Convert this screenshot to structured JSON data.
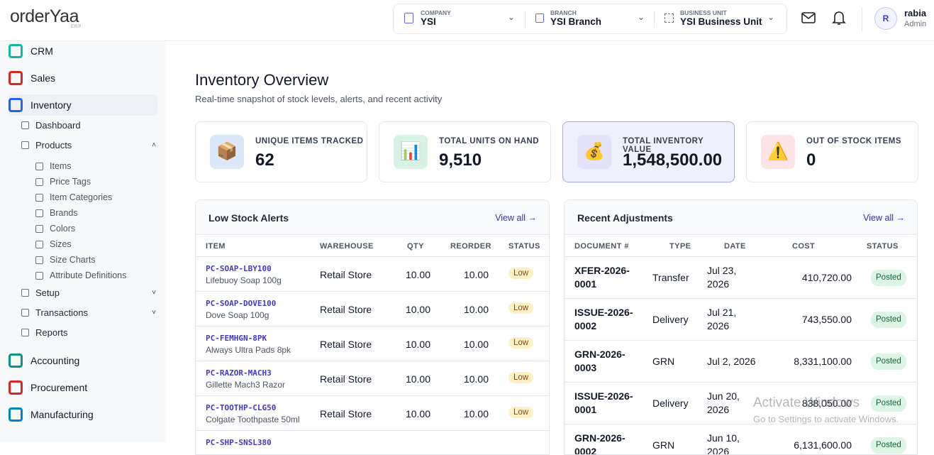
{
  "header": {
    "logo": "orderYaa",
    "logo_sub": "ERP",
    "company_label": "COMPANY",
    "company": "YSI",
    "branch_label": "BRANCH",
    "branch": "YSI Branch",
    "bu_label": "BUSINESS UNIT",
    "bu": "YSI Business Unit",
    "avatar": "R",
    "user": "rabia",
    "role": "Admin"
  },
  "sidebar": {
    "items": [
      {
        "label": "CRM",
        "level": 0
      },
      {
        "label": "Sales",
        "level": 0
      },
      {
        "label": "Inventory",
        "level": 0,
        "active": true
      },
      {
        "label": "Dashboard",
        "level": 1
      },
      {
        "label": "Products",
        "level": 1,
        "open": true
      },
      {
        "label": "Items",
        "level": 2
      },
      {
        "label": "Price Tags",
        "level": 2
      },
      {
        "label": "Item Categories",
        "level": 2
      },
      {
        "label": "Brands",
        "level": 2
      },
      {
        "label": "Colors",
        "level": 2
      },
      {
        "label": "Sizes",
        "level": 2
      },
      {
        "label": "Size Charts",
        "level": 2
      },
      {
        "label": "Attribute Definitions",
        "level": 2
      },
      {
        "label": "Setup",
        "level": 1,
        "caret": true
      },
      {
        "label": "Transactions",
        "level": 1,
        "caret": true
      },
      {
        "label": "Reports",
        "level": 1
      },
      {
        "label": "Accounting",
        "level": 0
      },
      {
        "label": "Procurement",
        "level": 0
      },
      {
        "label": "Manufacturing",
        "level": 0
      }
    ]
  },
  "page": {
    "title": "Inventory Overview",
    "subtitle": "Real-time snapshot of stock levels, alerts, and recent activity"
  },
  "cards": [
    {
      "label": "UNIQUE ITEMS TRACKED",
      "value": "62"
    },
    {
      "label": "TOTAL UNITS ON HAND",
      "value": "9,510"
    },
    {
      "label": "TOTAL INVENTORY VALUE",
      "value": "1,548,500.00"
    },
    {
      "label": "OUT OF STOCK ITEMS",
      "value": "0"
    }
  ],
  "low_stock": {
    "title": "Low Stock Alerts",
    "link": "View all →",
    "columns": [
      "ITEM",
      "WAREHOUSE",
      "QTY",
      "REORDER",
      "STATUS"
    ],
    "rows": [
      [
        "PC-SOAP-LBY100",
        "Lifebuoy Soap 100g",
        "Retail Store",
        "10.00",
        "10.00",
        "Low"
      ],
      [
        "PC-SOAP-DOVE100",
        "Dove Soap 100g",
        "Retail Store",
        "10.00",
        "10.00",
        "Low"
      ],
      [
        "PC-FEMHGN-8PK",
        "Always Ultra Pads 8pk",
        "Retail Store",
        "10.00",
        "10.00",
        "Low"
      ],
      [
        "PC-RAZOR-MACH3",
        "Gillette Mach3 Razor",
        "Retail Store",
        "10.00",
        "10.00",
        "Low"
      ],
      [
        "PC-TOOTHP-CLG50",
        "Colgate Toothpaste 50ml",
        "Retail Store",
        "10.00",
        "10.00",
        "Low"
      ],
      [
        "PC-SHP-SNSL380"
      ]
    ]
  },
  "adjustments": {
    "title": "Recent Adjustments",
    "link": "View all →",
    "columns": [
      "DOCUMENT #",
      "TYPE",
      "DATE",
      "COST",
      "STATUS"
    ],
    "rows": [
      [
        "XFER-2026-0001",
        "Transfer",
        "Jul 23, 2026",
        "410,720.00",
        "Posted"
      ],
      [
        "ISSUE-2026-0002",
        "Delivery",
        "Jul 21, 2026",
        "743,550.00",
        "Posted"
      ],
      [
        "GRN-2026-0003",
        "GRN",
        "Jul 2, 2026",
        "8,331,100.00",
        "Posted"
      ],
      [
        "ISSUE-2026-0001",
        "Delivery",
        "Jun 20, 2026",
        "838,050.00",
        "Posted"
      ],
      [
        "GRN-2026-0002",
        "GRN",
        "Jun 10, 2026",
        "6,131,600.00",
        "Posted"
      ]
    ]
  },
  "watermark": {
    "title": "Activate Windows",
    "text": "Go to Settings to activate Windows."
  }
}
